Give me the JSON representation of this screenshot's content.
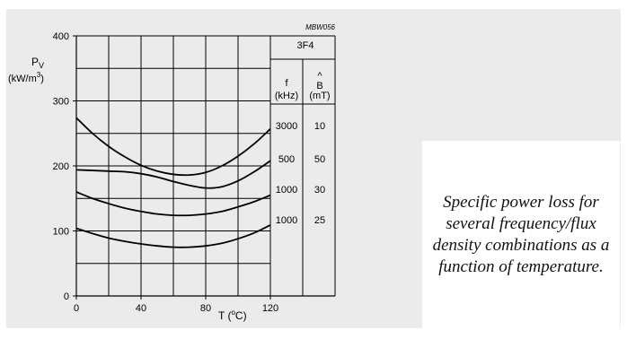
{
  "chart_data": {
    "type": "line",
    "figure_code": "MBW056",
    "material": "3F4",
    "ylabel_symbol": "P",
    "ylabel_subscript": "V",
    "ylabel_unit_prefix": "(kW/m",
    "ylabel_unit_exp": "3",
    "ylabel_unit_suffix": ")",
    "xlabel_prefix": "T (",
    "xlabel_degree": "o",
    "xlabel_suffix": "C)",
    "xlim": [
      0,
      120
    ],
    "ylim": [
      0,
      400
    ],
    "x_ticks": [
      "0",
      "40",
      "80",
      "120"
    ],
    "y_ticks": [
      "0",
      "100",
      "200",
      "300",
      "400"
    ],
    "legend_col1_header": [
      "f",
      "(kHz)"
    ],
    "legend_col2_header_hat": "^",
    "legend_col2_header": [
      "B",
      "(mT)"
    ],
    "legend_rows": [
      {
        "f": "3000",
        "B": "10"
      },
      {
        "f": "500",
        "B": "50"
      },
      {
        "f": "1000",
        "B": "30"
      },
      {
        "f": "1000",
        "B": "25"
      }
    ],
    "series": [
      {
        "x": [
          0,
          10,
          20,
          30,
          40,
          50,
          60,
          70,
          80,
          90,
          100,
          110,
          120
        ],
        "y": [
          274,
          250,
          230,
          214,
          201,
          192,
          187,
          186,
          190,
          200,
          215,
          234,
          257
        ]
      },
      {
        "x": [
          0,
          10,
          20,
          30,
          40,
          50,
          60,
          70,
          80,
          90,
          100,
          110,
          120
        ],
        "y": [
          194,
          193,
          192,
          191,
          188,
          183,
          176,
          170,
          166,
          168,
          177,
          191,
          208
        ]
      },
      {
        "x": [
          0,
          10,
          20,
          30,
          40,
          50,
          60,
          70,
          80,
          90,
          100,
          110,
          120
        ],
        "y": [
          160,
          150,
          142,
          135,
          130,
          126,
          124,
          124,
          126,
          130,
          137,
          145,
          155
        ]
      },
      {
        "x": [
          0,
          10,
          20,
          30,
          40,
          50,
          60,
          70,
          80,
          90,
          100,
          110,
          120
        ],
        "y": [
          104,
          96,
          89,
          84,
          80,
          77,
          75,
          75,
          77,
          81,
          88,
          97,
          109
        ]
      }
    ]
  },
  "caption": "Specific power loss for several frequency/flux density combinations as a function of temperature."
}
